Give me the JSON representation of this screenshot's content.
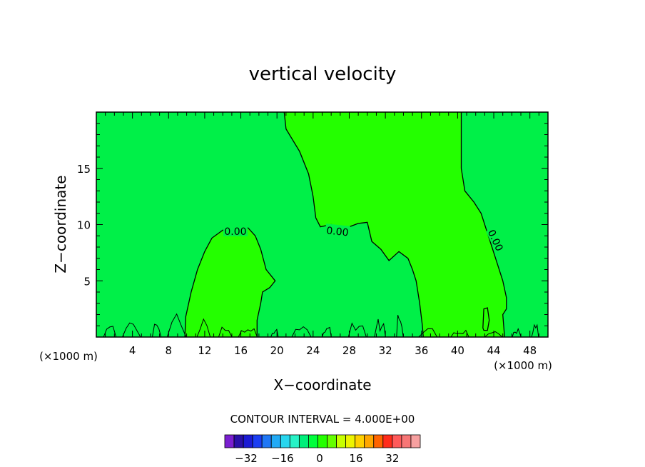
{
  "chart_data": {
    "type": "contour",
    "title": "vertical velocity",
    "xlabel": "X−coordinate",
    "ylabel": "Z−coordinate",
    "x_unit_label": "(×1000 m)",
    "xlim": [
      0,
      50
    ],
    "ylim": [
      0,
      20
    ],
    "x_ticks": [
      4,
      8,
      12,
      16,
      20,
      24,
      28,
      32,
      36,
      40,
      44,
      48
    ],
    "y_ticks": [
      5,
      10,
      15
    ],
    "contour_interval_label": "CONTOUR INTERVAL = 4.000E+00",
    "contour_labels": [
      "0.00",
      "0.00",
      "0.00"
    ],
    "zero_contours": [
      {
        "name": "updraft-left",
        "points": [
          [
            9.8,
            0
          ],
          [
            9.9,
            1.8
          ],
          [
            10.5,
            4
          ],
          [
            11.2,
            6
          ],
          [
            12,
            7.6
          ],
          [
            12.8,
            8.8
          ],
          [
            14,
            9.5
          ],
          [
            15.5,
            9.8
          ],
          [
            16.8,
            9.7
          ],
          [
            17.6,
            9
          ],
          [
            18.2,
            7.8
          ],
          [
            18.8,
            6
          ],
          [
            19.8,
            5
          ],
          [
            19.2,
            4.4
          ],
          [
            18.4,
            4
          ],
          [
            18.2,
            3
          ],
          [
            17.8,
            1.5
          ],
          [
            17.8,
            0
          ]
        ]
      },
      {
        "name": "updraft-right",
        "points": [
          [
            20.8,
            20
          ],
          [
            21,
            18.5
          ],
          [
            22.5,
            16.5
          ],
          [
            23.5,
            14.5
          ],
          [
            24,
            12.5
          ],
          [
            24.3,
            10.6
          ],
          [
            24.8,
            9.8
          ],
          [
            26,
            10
          ],
          [
            27,
            9.5
          ],
          [
            28,
            9.8
          ],
          [
            29,
            10.1
          ],
          [
            30,
            10.2
          ],
          [
            30.5,
            8.5
          ],
          [
            31.5,
            7.8
          ],
          [
            32.4,
            6.8
          ],
          [
            33.5,
            7.6
          ],
          [
            34.5,
            7
          ],
          [
            35,
            6
          ],
          [
            35.4,
            5
          ],
          [
            35.8,
            3
          ],
          [
            36.1,
            1
          ],
          [
            36.2,
            0
          ]
        ]
      },
      {
        "name": "right-boundary",
        "points": [
          [
            40.4,
            20
          ],
          [
            40.4,
            15
          ],
          [
            40.8,
            13
          ],
          [
            41.8,
            12
          ],
          [
            42.6,
            11
          ],
          [
            43.2,
            9.5
          ],
          [
            43.8,
            8
          ],
          [
            44.4,
            6.5
          ],
          [
            45,
            5
          ],
          [
            45.4,
            3.5
          ],
          [
            45.4,
            2.5
          ],
          [
            45,
            2
          ],
          [
            45.2,
            0
          ]
        ]
      },
      {
        "name": "small-cell",
        "points": [
          [
            42.8,
            0.8
          ],
          [
            42.9,
            2.5
          ],
          [
            43.3,
            2.6
          ],
          [
            43.5,
            1.5
          ],
          [
            43.3,
            0.6
          ],
          [
            42.9,
            0.6
          ],
          [
            42.8,
            0.8
          ]
        ]
      }
    ],
    "colorbar": {
      "tick_labels": [
        "−32",
        "−16",
        "0",
        "16",
        "32"
      ],
      "colors": [
        "#7a1fd0",
        "#2a10a8",
        "#1b1bd4",
        "#1b3ef2",
        "#1f77f6",
        "#22aaf5",
        "#28d6ee",
        "#27f2c6",
        "#00ef7a",
        "#00ff3c",
        "#24ff00",
        "#64ff00",
        "#c8ff00",
        "#eef400",
        "#ffd000",
        "#ffa600",
        "#ff6400",
        "#ff2c1a",
        "#ff5a5a",
        "#f77676",
        "#f7a0a0"
      ]
    },
    "fill_colors": {
      "background": "#00f048",
      "updraft": "#24ff00"
    }
  }
}
